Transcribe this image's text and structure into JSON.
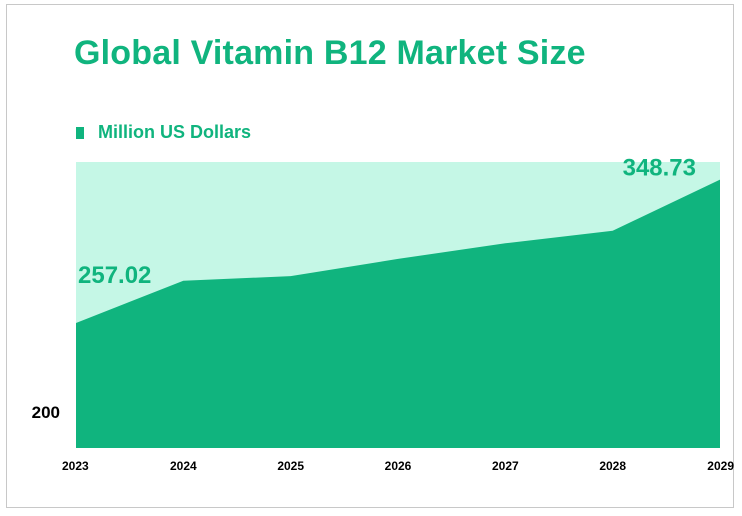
{
  "title": "Global Vitamin B12 Market Size",
  "colors": {
    "accent": "#10b47e",
    "plot_background": "#c5f7e6",
    "text": "#000000"
  },
  "chart_data": {
    "type": "area",
    "title": "Global Vitamin B12 Market Size",
    "xlabel": "",
    "ylabel": "",
    "legend_position": "top-left",
    "grid": false,
    "categories": [
      "2023",
      "2024",
      "2025",
      "2026",
      "2027",
      "2028",
      "2029"
    ],
    "series": [
      {
        "name": "Million US Dollars",
        "values": [
          257.02,
          284,
          287,
          298,
          308,
          316,
          348.73
        ],
        "color": "#10b47e"
      }
    ],
    "y_ticks": [
      200
    ],
    "ylim": [
      177,
      360
    ],
    "data_labels": [
      {
        "index": 0,
        "text": "257.02"
      },
      {
        "index": 6,
        "text": "348.73"
      }
    ]
  }
}
